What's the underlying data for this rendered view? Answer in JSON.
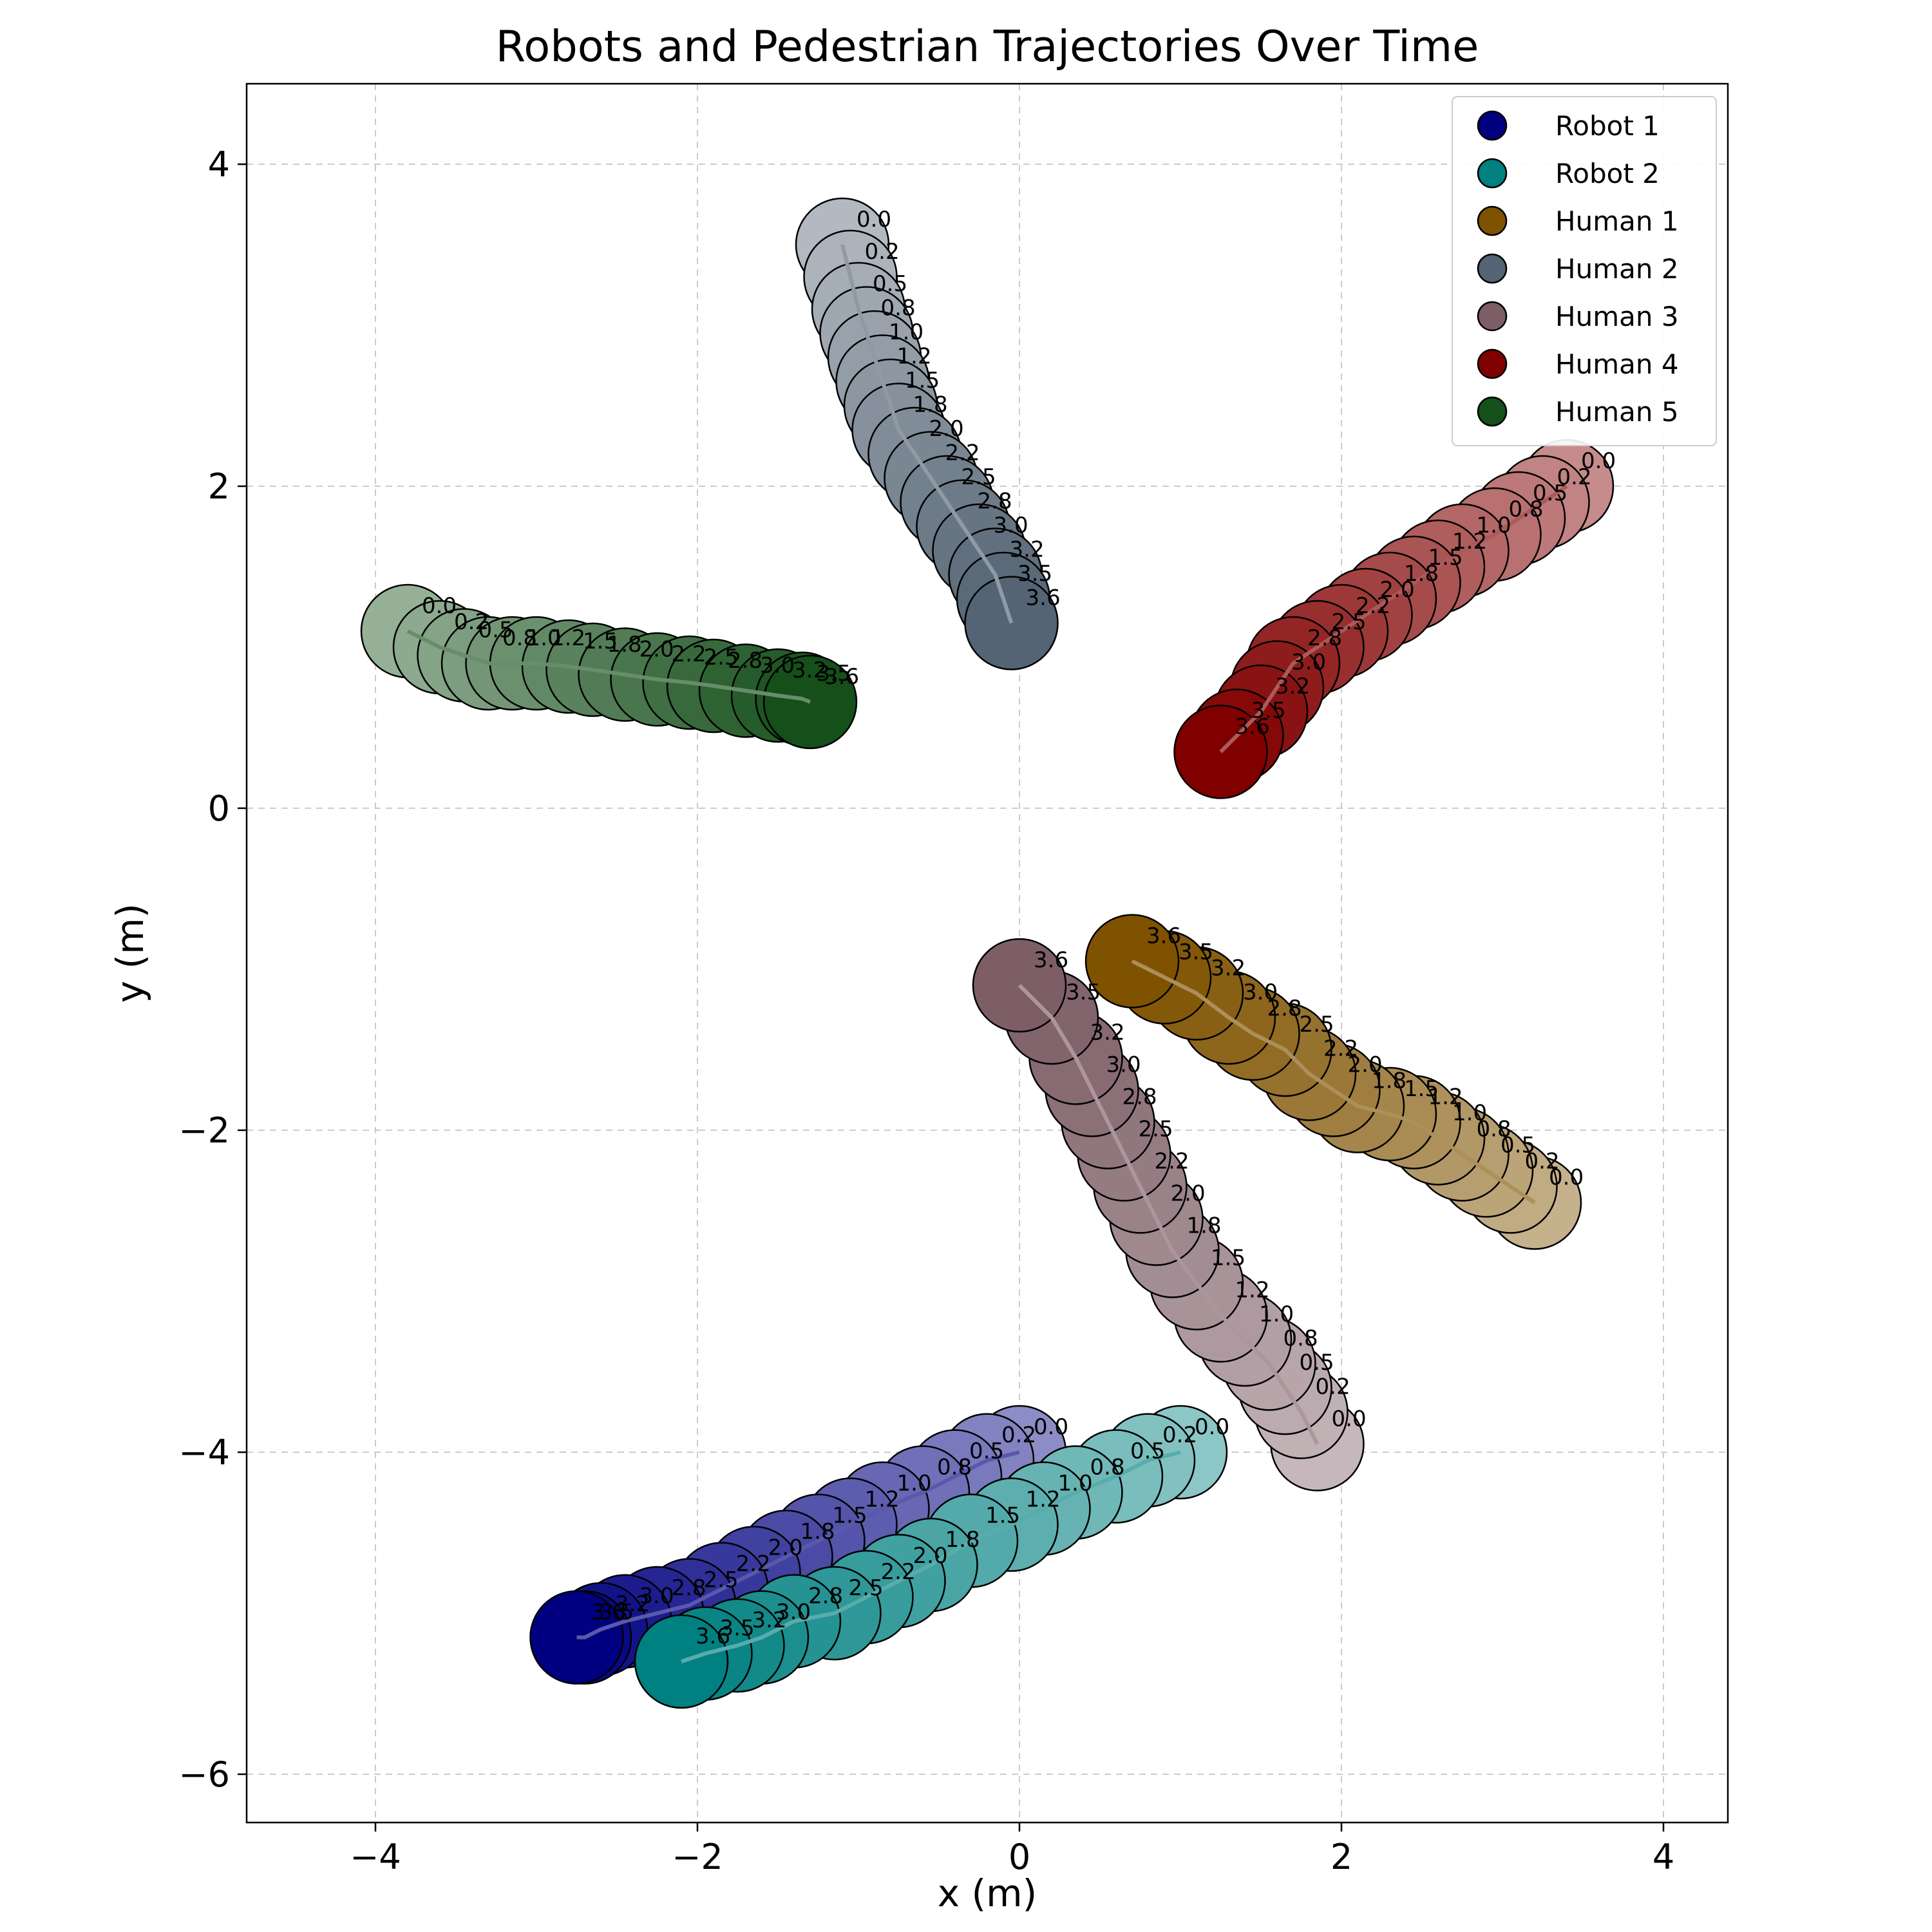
{
  "chart_data": {
    "type": "scatter",
    "title": "Robots and Pedestrian Trajectories Over Time",
    "xlabel": "x (m)",
    "ylabel": "y (m)",
    "xlim": [
      -4.8,
      4.4
    ],
    "ylim": [
      -6.3,
      4.5
    ],
    "xticks": [
      -4,
      -2,
      0,
      2,
      4
    ],
    "yticks": [
      -6,
      -4,
      -2,
      0,
      2,
      4
    ],
    "xtick_labels": [
      "−4",
      "−2",
      "0",
      "2",
      "4"
    ],
    "ytick_labels": [
      "−6",
      "−4",
      "−2",
      "0",
      "2",
      "4"
    ],
    "grid": true,
    "legend_position": "top-right",
    "times": [
      "0.0",
      "0.2",
      "0.5",
      "0.8",
      "1.0",
      "1.2",
      "1.5",
      "1.8",
      "2.0",
      "2.2",
      "2.5",
      "2.8",
      "3.0",
      "3.2",
      "3.5",
      "3.6"
    ],
    "series": [
      {
        "name": "Robot 1",
        "color": "#000080",
        "x": [
          0.0,
          -0.2,
          -0.4,
          -0.6,
          -0.85,
          -1.05,
          -1.25,
          -1.45,
          -1.65,
          -1.85,
          -2.05,
          -2.25,
          -2.45,
          -2.6,
          -2.7,
          -2.75
        ],
        "y": [
          -4.0,
          -4.05,
          -4.15,
          -4.25,
          -4.35,
          -4.45,
          -4.55,
          -4.65,
          -4.75,
          -4.85,
          -4.95,
          -5.0,
          -5.05,
          -5.1,
          -5.15,
          -5.15
        ]
      },
      {
        "name": "Robot 2",
        "color": "#008080",
        "x": [
          1.0,
          0.8,
          0.6,
          0.35,
          0.15,
          -0.05,
          -0.3,
          -0.55,
          -0.75,
          -0.95,
          -1.15,
          -1.4,
          -1.6,
          -1.75,
          -1.95,
          -2.1
        ],
        "y": [
          -4.0,
          -4.05,
          -4.15,
          -4.25,
          -4.35,
          -4.45,
          -4.55,
          -4.7,
          -4.8,
          -4.9,
          -5.0,
          -5.05,
          -5.15,
          -5.2,
          -5.25,
          -5.3
        ]
      },
      {
        "name": "Human 1",
        "color": "#7f5200",
        "x": [
          3.2,
          3.05,
          2.9,
          2.75,
          2.6,
          2.45,
          2.3,
          2.1,
          1.95,
          1.8,
          1.65,
          1.45,
          1.3,
          1.1,
          0.9,
          0.7
        ],
        "y": [
          -2.45,
          -2.35,
          -2.25,
          -2.15,
          -2.05,
          -1.95,
          -1.9,
          -1.85,
          -1.75,
          -1.65,
          -1.5,
          -1.4,
          -1.3,
          -1.15,
          -1.05,
          -0.95
        ]
      },
      {
        "name": "Human 2",
        "color": "#546474",
        "x": [
          -1.1,
          -1.05,
          -1.0,
          -0.95,
          -0.9,
          -0.85,
          -0.8,
          -0.75,
          -0.65,
          -0.55,
          -0.45,
          -0.35,
          -0.25,
          -0.15,
          -0.1,
          -0.05
        ],
        "y": [
          3.5,
          3.3,
          3.1,
          2.95,
          2.8,
          2.65,
          2.5,
          2.35,
          2.2,
          2.05,
          1.9,
          1.75,
          1.6,
          1.45,
          1.3,
          1.15
        ]
      },
      {
        "name": "Human 3",
        "color": "#7d5e67",
        "x": [
          1.85,
          1.75,
          1.65,
          1.55,
          1.4,
          1.25,
          1.1,
          0.95,
          0.85,
          0.75,
          0.65,
          0.55,
          0.45,
          0.35,
          0.2,
          0.0
        ],
        "y": [
          -3.95,
          -3.75,
          -3.6,
          -3.45,
          -3.3,
          -3.15,
          -2.95,
          -2.75,
          -2.55,
          -2.35,
          -2.15,
          -1.95,
          -1.75,
          -1.55,
          -1.3,
          -1.1
        ]
      },
      {
        "name": "Human 4",
        "color": "#800000",
        "x": [
          3.4,
          3.25,
          3.1,
          2.95,
          2.75,
          2.6,
          2.45,
          2.3,
          2.15,
          2.0,
          1.85,
          1.7,
          1.6,
          1.5,
          1.35,
          1.25
        ],
        "y": [
          2.0,
          1.9,
          1.8,
          1.7,
          1.6,
          1.5,
          1.4,
          1.3,
          1.2,
          1.1,
          1.0,
          0.9,
          0.75,
          0.6,
          0.45,
          0.35
        ]
      },
      {
        "name": "Human 5",
        "color": "#154f1a",
        "x": [
          -3.8,
          -3.6,
          -3.45,
          -3.3,
          -3.15,
          -3.0,
          -2.8,
          -2.65,
          -2.45,
          -2.25,
          -2.05,
          -1.9,
          -1.7,
          -1.5,
          -1.35,
          -1.3
        ],
        "y": [
          1.1,
          1.0,
          0.95,
          0.9,
          0.9,
          0.9,
          0.88,
          0.86,
          0.83,
          0.8,
          0.78,
          0.76,
          0.73,
          0.7,
          0.68,
          0.66
        ]
      }
    ]
  }
}
